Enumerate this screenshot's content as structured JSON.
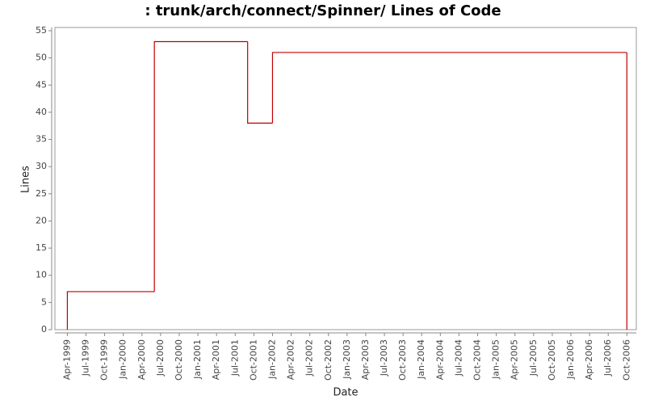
{
  "chart_data": {
    "type": "step",
    "title": ": trunk/arch/connect/Spinner/ Lines of Code",
    "x_label": "Date",
    "y_label": "Lines",
    "x": [
      "1999-04",
      "2000-06",
      "2001-09",
      "2002-01",
      "2006-10"
    ],
    "values": [
      7,
      53,
      38,
      51,
      0
    ],
    "color": "#c00000",
    "xlim": [
      "1999-02",
      "2006-11"
    ],
    "ylim": [
      0,
      55.6
    ],
    "yticks": [
      0,
      5,
      10,
      15,
      20,
      25,
      30,
      35,
      40,
      45,
      50,
      55
    ],
    "xticks": [
      {
        "value": "1999-04",
        "label": "Apr-1999"
      },
      {
        "value": "1999-07",
        "label": "Jul-1999"
      },
      {
        "value": "1999-10",
        "label": "Oct-1999"
      },
      {
        "value": "2000-01",
        "label": "Jan-2000"
      },
      {
        "value": "2000-04",
        "label": "Apr-2000"
      },
      {
        "value": "2000-07",
        "label": "Jul-2000"
      },
      {
        "value": "2000-10",
        "label": "Oct-2000"
      },
      {
        "value": "2001-01",
        "label": "Jan-2001"
      },
      {
        "value": "2001-04",
        "label": "Apr-2001"
      },
      {
        "value": "2001-07",
        "label": "Jul-2001"
      },
      {
        "value": "2001-10",
        "label": "Oct-2001"
      },
      {
        "value": "2002-01",
        "label": "Jan-2002"
      },
      {
        "value": "2002-04",
        "label": "Apr-2002"
      },
      {
        "value": "2002-07",
        "label": "Jul-2002"
      },
      {
        "value": "2002-10",
        "label": "Oct-2002"
      },
      {
        "value": "2003-01",
        "label": "Jan-2003"
      },
      {
        "value": "2003-04",
        "label": "Apr-2003"
      },
      {
        "value": "2003-07",
        "label": "Jul-2003"
      },
      {
        "value": "2003-10",
        "label": "Oct-2003"
      },
      {
        "value": "2004-01",
        "label": "Jan-2004"
      },
      {
        "value": "2004-04",
        "label": "Apr-2004"
      },
      {
        "value": "2004-07",
        "label": "Jul-2004"
      },
      {
        "value": "2004-10",
        "label": "Oct-2004"
      },
      {
        "value": "2005-01",
        "label": "Jan-2005"
      },
      {
        "value": "2005-04",
        "label": "Apr-2005"
      },
      {
        "value": "2005-07",
        "label": "Jul-2005"
      },
      {
        "value": "2005-10",
        "label": "Oct-2005"
      },
      {
        "value": "2006-01",
        "label": "Jan-2006"
      },
      {
        "value": "2006-04",
        "label": "Apr-2006"
      },
      {
        "value": "2006-07",
        "label": "Jul-2006"
      },
      {
        "value": "2006-10",
        "label": "Oct-2006"
      }
    ]
  }
}
